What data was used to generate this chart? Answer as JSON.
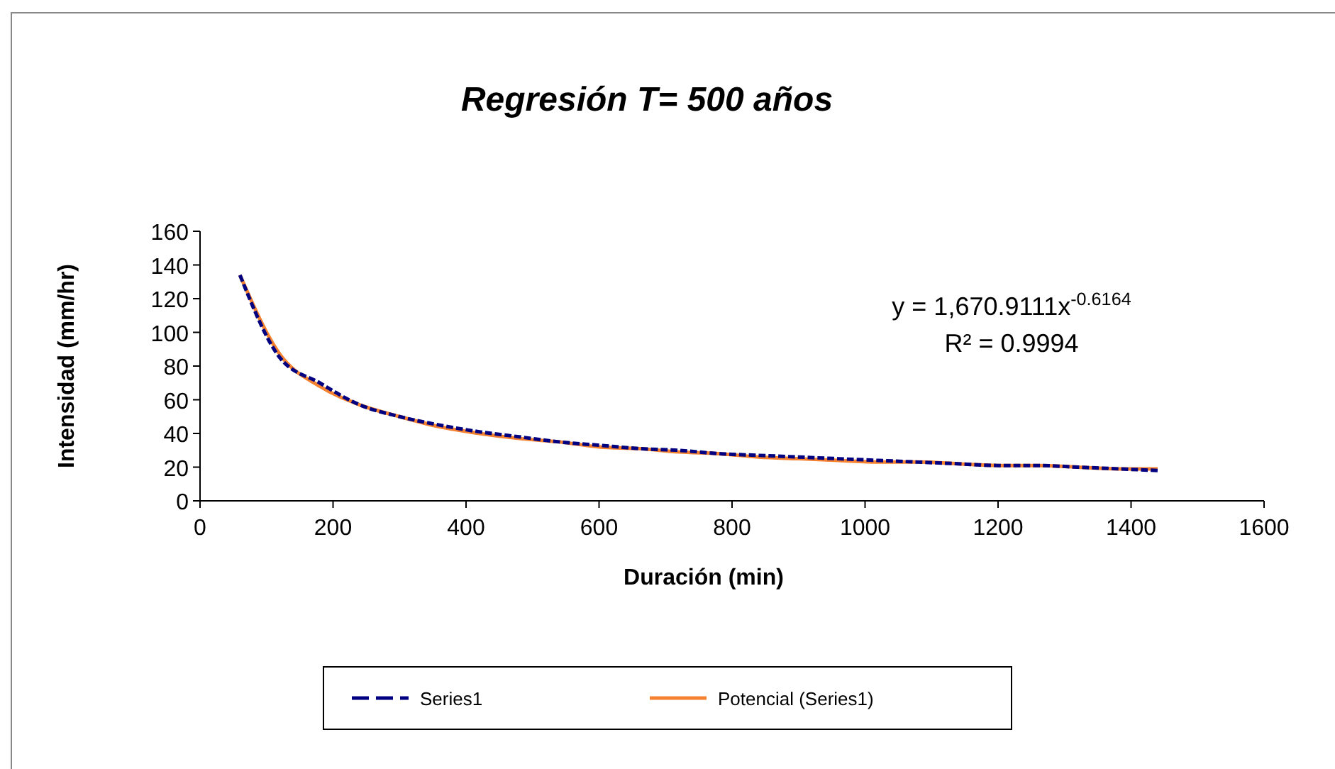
{
  "chart_data": {
    "type": "line",
    "title": "Regresión T= 500 años",
    "xlabel": "Duración (min)",
    "ylabel": "Intensidad (mm/hr)",
    "xlim": [
      0,
      1600
    ],
    "xticks": [
      0,
      200,
      400,
      600,
      800,
      1000,
      1200,
      1400,
      1600
    ],
    "ylim": [
      0,
      160
    ],
    "yticks": [
      0,
      20,
      40,
      60,
      80,
      100,
      120,
      140,
      160
    ],
    "x": [
      60,
      120,
      180,
      240,
      300,
      360,
      420,
      480,
      540,
      600,
      660,
      720,
      780,
      840,
      900,
      960,
      1020,
      1080,
      1140,
      1200,
      1260,
      1320,
      1380,
      1440
    ],
    "series": [
      {
        "name": "Series1",
        "color": "#000080",
        "line_style": "dashed",
        "values": [
          134,
          85,
          70,
          57,
          50,
          45,
          41,
          38,
          35,
          33,
          31,
          30,
          28,
          27,
          26,
          25,
          24,
          23,
          22,
          21,
          21,
          20,
          19,
          18
        ]
      },
      {
        "name": "Potencial (Series1)",
        "color": "#f58231",
        "line_style": "solid",
        "values": [
          134,
          87,
          68,
          57,
          50,
          44,
          40,
          37,
          35,
          32,
          31,
          29,
          28,
          26,
          25,
          24,
          23,
          23,
          22,
          21,
          21,
          20,
          19,
          19
        ]
      }
    ],
    "legend": "bottom",
    "annotations": [
      "y = 1,670.9111x$^{-0.6164}$",
      "R² = 0.9994"
    ]
  }
}
